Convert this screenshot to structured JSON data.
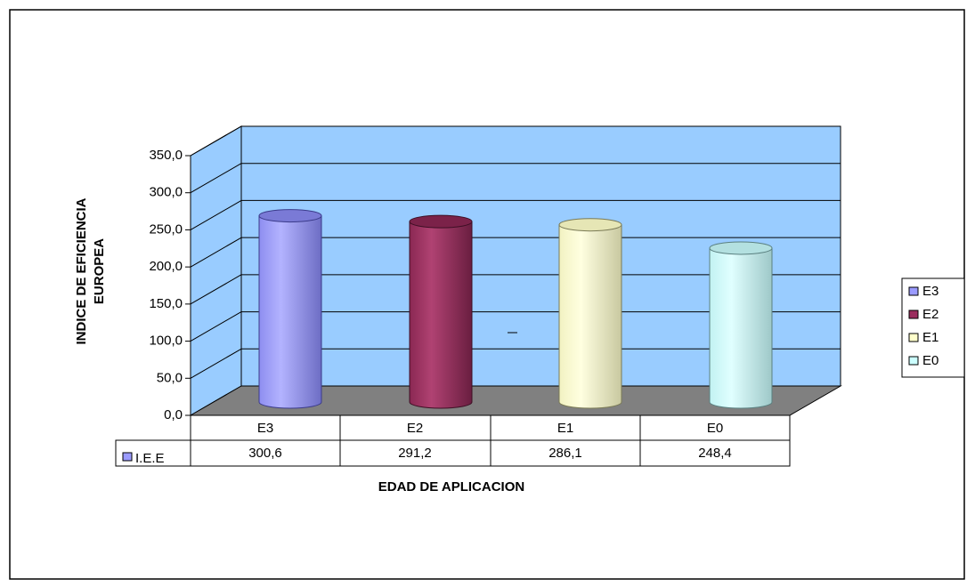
{
  "chart_data": {
    "type": "bar",
    "style": "3d-cylinder",
    "categories": [
      "E3",
      "E2",
      "E1",
      "E0"
    ],
    "series": [
      {
        "name": "I.E.E",
        "values": [
          300.6,
          291.2,
          286.1,
          248.4
        ],
        "value_labels": [
          "300,6",
          "291,2",
          "286,1",
          "248,4"
        ]
      }
    ],
    "xlabel": "EDAD DE APLICACION",
    "ylabel_lines": [
      "INDICE DE EFICIENCIA",
      "EUROPEA"
    ],
    "ylim": [
      0,
      350
    ],
    "yticks": [
      "0,0",
      "50,0",
      "100,0",
      "150,0",
      "200,0",
      "250,0",
      "300,0",
      "350,0"
    ],
    "grid": true,
    "legend_position": "right",
    "legend": [
      "E3",
      "E2",
      "E1",
      "E0"
    ],
    "data_table": true,
    "colors": {
      "E3": "#9b9bff",
      "E2": "#9b2d5e",
      "E1": "#ffffcc",
      "E0": "#ccffff",
      "wall": "#99ccff",
      "floor": "#808080"
    }
  }
}
